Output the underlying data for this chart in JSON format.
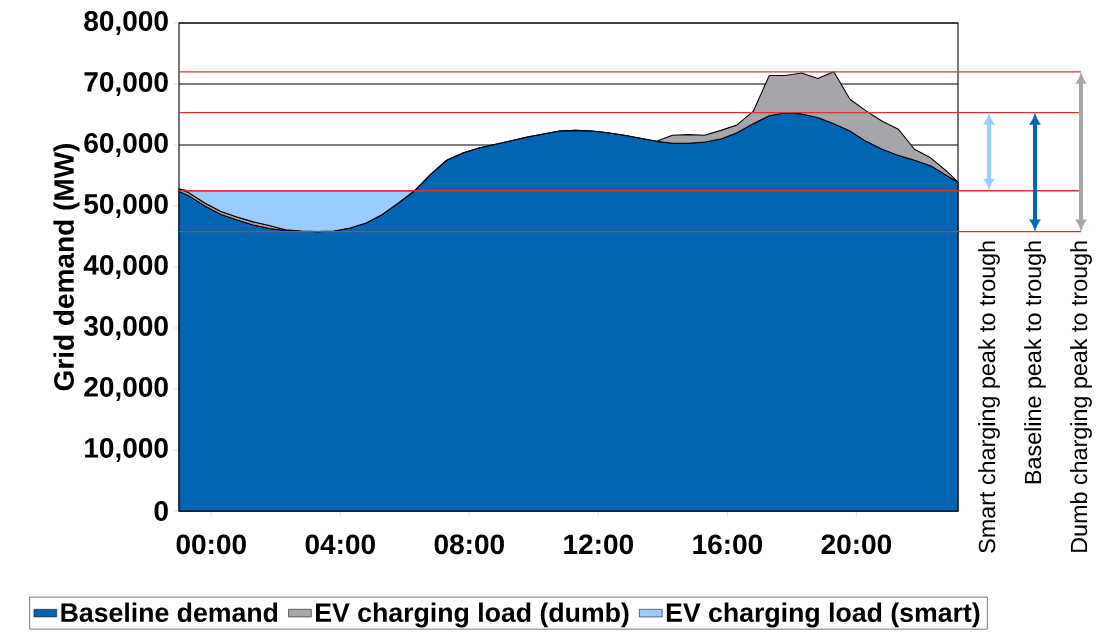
{
  "chart_data": {
    "type": "area",
    "stacked": true,
    "ylabel": "Grid demand (MW)",
    "x": [
      -1.0,
      -0.7,
      -0.2,
      0.3,
      0.8,
      1.3,
      1.8,
      2.3,
      2.8,
      3.3,
      3.8,
      4.3,
      4.8,
      5.3,
      5.8,
      6.3,
      6.8,
      7.3,
      7.8,
      8.3,
      8.8,
      9.3,
      9.8,
      10.3,
      10.8,
      11.3,
      11.8,
      12.3,
      12.8,
      13.3,
      13.8,
      14.3,
      14.8,
      15.3,
      15.8,
      16.3,
      16.8,
      17.3,
      17.8,
      18.3,
      18.8,
      19.3,
      19.8,
      20.3,
      20.8,
      21.3,
      21.8,
      22.3,
      22.8,
      23.15
    ],
    "series": [
      {
        "name": "Baseline demand",
        "color": "#0066b3",
        "values": [
          52400,
          51700,
          50000,
          48600,
          47700,
          46900,
          46300,
          46000,
          45900,
          45800,
          45900,
          46400,
          47200,
          48600,
          50500,
          52500,
          55200,
          57500,
          58700,
          59500,
          60100,
          60700,
          61300,
          61800,
          62300,
          62400,
          62300,
          62000,
          61600,
          61100,
          60600,
          60300,
          60300,
          60500,
          61000,
          62000,
          63500,
          64800,
          65300,
          65100,
          64500,
          63500,
          62300,
          60600,
          59300,
          58300,
          57500,
          56600,
          55000,
          53900
        ]
      },
      {
        "name": "EV charging load (dumb)",
        "color": "#a6a6aa",
        "values": [
          400,
          500,
          500,
          500,
          500,
          500,
          500,
          100,
          0,
          0,
          0,
          0,
          0,
          0,
          0,
          0,
          0,
          0,
          0,
          0,
          0,
          0,
          0,
          0,
          0,
          0,
          0,
          0,
          0,
          0,
          0,
          1300,
          1400,
          1100,
          1400,
          1300,
          2000,
          6600,
          6100,
          6700,
          6400,
          8500,
          5200,
          5000,
          4600,
          4300,
          1800,
          1300,
          700,
          0
        ]
      },
      {
        "name": "EV charging load (smart)",
        "color": "#99ccff",
        "values": [
          0,
          300,
          2000,
          3400,
          4300,
          5100,
          5700,
          6400,
          6600,
          6700,
          6600,
          6100,
          5300,
          3900,
          2000,
          0,
          null,
          null,
          null,
          null,
          null,
          null,
          null,
          null,
          null,
          null,
          null,
          null,
          null,
          null,
          null,
          null,
          null,
          null,
          null,
          null,
          null,
          null,
          null,
          null,
          null,
          null,
          null,
          null,
          null,
          null,
          null,
          null,
          null,
          null
        ]
      }
    ],
    "xlim": [
      -1.0,
      23.15
    ],
    "xticks": [
      {
        "value": 0,
        "label": "00:00"
      },
      {
        "value": 4,
        "label": "04:00"
      },
      {
        "value": 8,
        "label": "08:00"
      },
      {
        "value": 12,
        "label": "12:00"
      },
      {
        "value": 16,
        "label": "16:00"
      },
      {
        "value": 20,
        "label": "20:00"
      }
    ],
    "ylim": [
      0,
      80000
    ],
    "yticks": [
      0,
      {
        "value": 10000,
        "label": "10,000"
      },
      {
        "value": 20000,
        "label": "20,000"
      },
      {
        "value": 30000,
        "label": "30,000"
      },
      {
        "value": 40000,
        "label": "40,000"
      },
      {
        "value": 50000,
        "label": "50,000"
      },
      {
        "value": 60000,
        "label": "60,000"
      },
      {
        "value": 70000,
        "label": "70,000"
      },
      {
        "value": 80000,
        "label": "80,000"
      }
    ],
    "grid": "y",
    "legend": "bottom",
    "ref_lines": [
      {
        "axis": "y",
        "value": 72000,
        "color": "#e03030"
      },
      {
        "axis": "y",
        "value": 65300,
        "color": "#e03030"
      },
      {
        "axis": "y",
        "value": 52500,
        "color": "#e03030"
      },
      {
        "axis": "y",
        "value": 45800,
        "color": "#e03030"
      }
    ],
    "annotations": [
      "Smart charging peak to trough",
      "Baseline peak to trough",
      "Dumb charging peak to trough"
    ]
  }
}
